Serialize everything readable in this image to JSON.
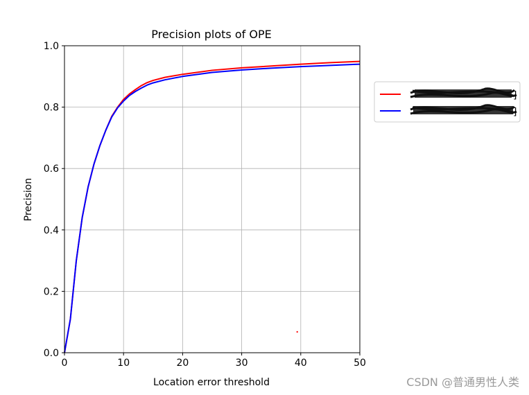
{
  "chart_data": {
    "type": "line",
    "title": "Precision plots of OPE",
    "xlabel": "Location error threshold",
    "ylabel": "Precision",
    "xlim": [
      0,
      50
    ],
    "ylim": [
      0,
      1.0
    ],
    "xticks": [
      0,
      10,
      20,
      30,
      40,
      50
    ],
    "yticks": [
      0.0,
      0.2,
      0.4,
      0.6,
      0.8,
      1.0
    ],
    "xtick_labels": [
      "0",
      "10",
      "20",
      "30",
      "40",
      "50"
    ],
    "ytick_labels": [
      "0.0",
      "0.2",
      "0.4",
      "0.6",
      "0.8",
      "1.0"
    ],
    "grid": true,
    "legend_placement": "outside-right",
    "x": [
      0,
      1,
      2,
      3,
      4,
      5,
      6,
      7,
      8,
      9,
      10,
      11,
      12,
      13,
      14,
      15,
      17,
      20,
      25,
      30,
      35,
      40,
      45,
      50
    ],
    "series": [
      {
        "color": "#ff0000",
        "values": [
          0.0,
          0.11,
          0.3,
          0.44,
          0.54,
          0.615,
          0.675,
          0.725,
          0.77,
          0.8,
          0.825,
          0.843,
          0.857,
          0.87,
          0.88,
          0.887,
          0.897,
          0.907,
          0.92,
          0.928,
          0.934,
          0.94,
          0.945,
          0.949
        ]
      },
      {
        "color": "#0000ff",
        "values": [
          0.0,
          0.11,
          0.3,
          0.44,
          0.54,
          0.615,
          0.675,
          0.725,
          0.768,
          0.798,
          0.82,
          0.838,
          0.851,
          0.862,
          0.872,
          0.879,
          0.889,
          0.9,
          0.913,
          0.921,
          0.927,
          0.932,
          0.936,
          0.94
        ]
      }
    ],
    "stray_marker": {
      "x": 39.4,
      "y": 0.068,
      "color": "#ff0000"
    }
  },
  "watermark": "CSDN @普通男性人类"
}
